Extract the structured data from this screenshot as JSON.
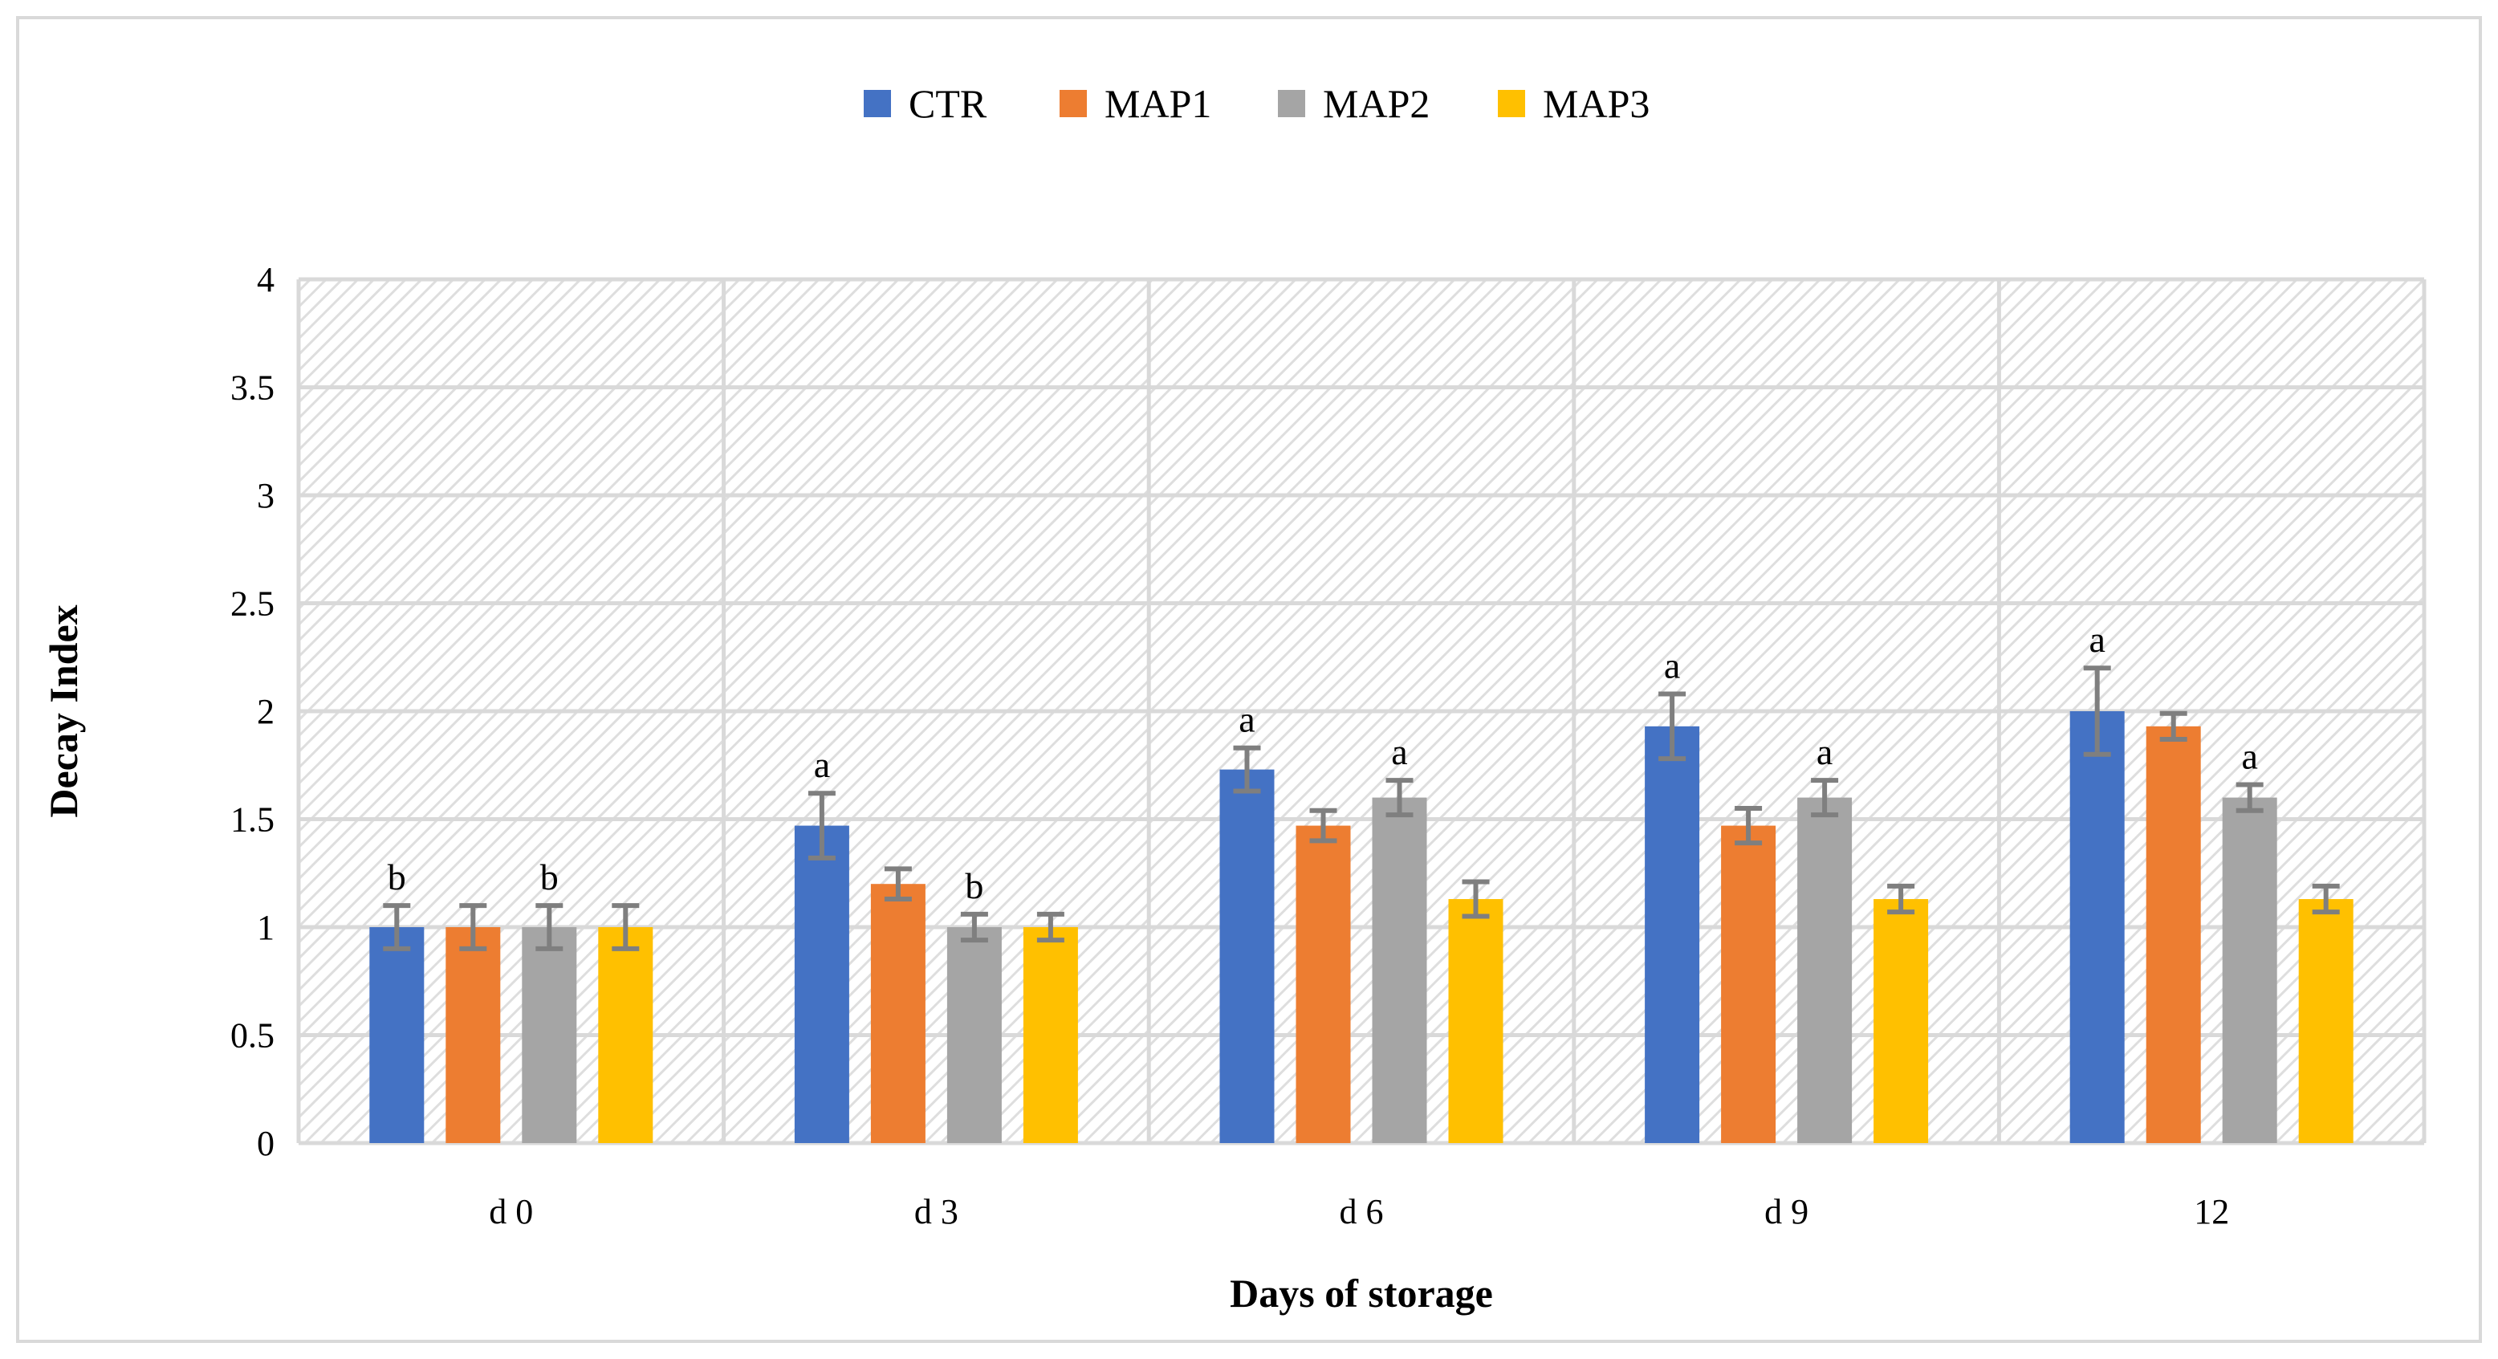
{
  "chart_data": {
    "type": "bar",
    "title": "",
    "xlabel": "Days of storage",
    "ylabel": "Decay Index",
    "categories": [
      "d 0",
      "d 3",
      "d 6",
      "d 9",
      "12"
    ],
    "ylim": [
      0,
      4
    ],
    "yticks": [
      0,
      0.5,
      1,
      1.5,
      2,
      2.5,
      3,
      3.5,
      4
    ],
    "ytick_labels": [
      "0",
      "0.5",
      "1",
      "1.5",
      "2",
      "2.5",
      "3",
      "3.5",
      "4"
    ],
    "grid": true,
    "legend_position": "top-center",
    "series": [
      {
        "name": "CTR",
        "color": "#4472c4",
        "values": [
          1.0,
          1.47,
          1.73,
          1.93,
          2.0
        ],
        "errors": [
          0.1,
          0.15,
          0.1,
          0.15,
          0.2
        ],
        "labels": [
          "b",
          "a",
          "a",
          "a",
          "a"
        ]
      },
      {
        "name": "MAP1",
        "color": "#ed7d31",
        "values": [
          1.0,
          1.2,
          1.47,
          1.47,
          1.93
        ],
        "errors": [
          0.1,
          0.07,
          0.07,
          0.08,
          0.06
        ],
        "labels": [
          "",
          "",
          "",
          "",
          ""
        ]
      },
      {
        "name": "MAP2",
        "color": "#a5a5a5",
        "values": [
          1.0,
          1.0,
          1.6,
          1.6,
          1.6
        ],
        "errors": [
          0.1,
          0.06,
          0.08,
          0.08,
          0.06
        ],
        "labels": [
          "b",
          "b",
          "a",
          "a",
          "a"
        ]
      },
      {
        "name": "MAP3",
        "color": "#ffc000",
        "values": [
          1.0,
          1.0,
          1.13,
          1.13,
          1.13
        ],
        "errors": [
          0.1,
          0.06,
          0.08,
          0.06,
          0.06
        ],
        "labels": [
          "",
          "",
          "",
          "",
          ""
        ]
      }
    ],
    "errorbar_color": "#7f7f7f",
    "gridline_color": "#d9d9d9"
  }
}
